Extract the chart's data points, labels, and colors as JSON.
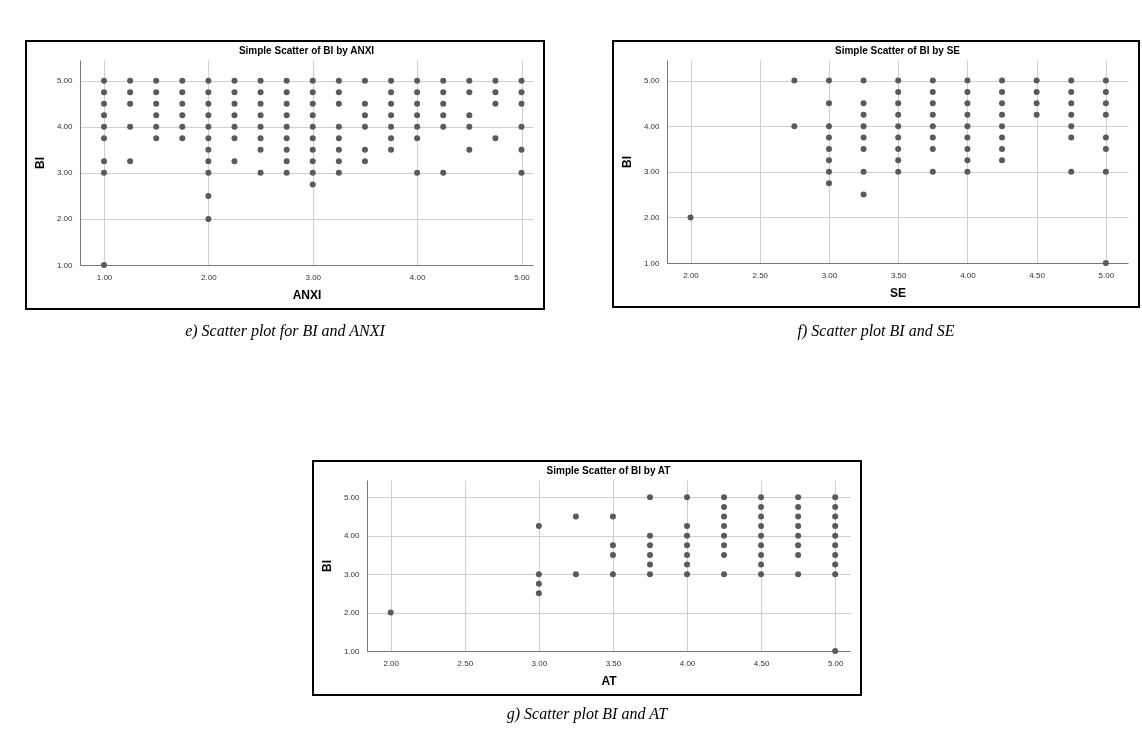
{
  "chart_data": [
    {
      "type": "scatter",
      "title": "Simple Scatter of BI by ANXI",
      "xlabel": "ANXI",
      "ylabel": "BI",
      "marker": "circle",
      "grid": true,
      "xlim": [
        0.77,
        5.11
      ],
      "ylim": [
        1,
        5.45
      ],
      "xticks": [
        {
          "value": 1,
          "label": "1.00"
        },
        {
          "value": 2,
          "label": "2.00"
        },
        {
          "value": 3,
          "label": "3.00"
        },
        {
          "value": 4,
          "label": "4.00"
        },
        {
          "value": 5,
          "label": "5.00"
        }
      ],
      "yticks": [
        {
          "value": 1,
          "label": "1.00"
        },
        {
          "value": 2,
          "label": "2.00"
        },
        {
          "value": 3,
          "label": "3.00"
        },
        {
          "value": 4,
          "label": "4.00"
        },
        {
          "value": 5,
          "label": "5.00"
        }
      ],
      "annotations": [
        "e) Scatter plot for BI and ANXI"
      ],
      "series": [
        {
          "color": "#5a5a5a",
          "x": [
            1,
            1,
            1,
            1,
            1,
            1,
            1,
            1,
            1,
            1.25,
            1.25,
            1.25,
            1.25,
            1.25,
            1.5,
            1.5,
            1.5,
            1.5,
            1.5,
            1.5,
            1.75,
            1.75,
            1.75,
            1.75,
            1.75,
            1.75,
            2,
            2,
            2,
            2,
            2,
            2,
            2,
            2,
            2,
            2,
            2,
            2.25,
            2.25,
            2.25,
            2.25,
            2.25,
            2.25,
            2.25,
            2.5,
            2.5,
            2.5,
            2.5,
            2.5,
            2.5,
            2.5,
            2.5,
            2.75,
            2.75,
            2.75,
            2.75,
            2.75,
            2.75,
            2.75,
            2.75,
            2.75,
            3,
            3,
            3,
            3,
            3,
            3,
            3,
            3,
            3,
            3,
            3.25,
            3.25,
            3.25,
            3.25,
            3.25,
            3.25,
            3.25,
            3.25,
            3.5,
            3.5,
            3.5,
            3.5,
            3.5,
            3.5,
            3.75,
            3.75,
            3.75,
            3.75,
            3.75,
            3.75,
            3.75,
            4,
            4,
            4,
            4,
            4,
            4,
            4,
            4.25,
            4.25,
            4.25,
            4.25,
            4.25,
            4.25,
            4.5,
            4.5,
            4.5,
            4.5,
            4.5,
            4.75,
            4.75,
            4.75,
            4.75,
            5,
            5,
            5,
            5,
            5,
            5
          ],
          "values": [
            5,
            4.75,
            4.5,
            4.25,
            4,
            3.75,
            3.25,
            3,
            1,
            5,
            4.75,
            4.5,
            4,
            3.25,
            5,
            4.75,
            4.5,
            4.25,
            4,
            3.75,
            5,
            4.75,
            4.5,
            4.25,
            4,
            3.75,
            5,
            4.75,
            4.5,
            4.25,
            4,
            3.75,
            3.5,
            3.25,
            3,
            2.5,
            2,
            5,
            4.75,
            4.5,
            4.25,
            4,
            3.75,
            3.25,
            5,
            4.75,
            4.5,
            4.25,
            4,
            3.75,
            3.5,
            3,
            5,
            4.75,
            4.5,
            4.25,
            4,
            3.75,
            3.5,
            3.25,
            3,
            5,
            4.75,
            4.5,
            4.25,
            4,
            3.75,
            3.5,
            3.25,
            3,
            2.75,
            5,
            4.75,
            4.5,
            4,
            3.75,
            3.5,
            3.25,
            3,
            5,
            4.5,
            4.25,
            4,
            3.5,
            3.25,
            5,
            4.75,
            4.5,
            4.25,
            4,
            3.75,
            3.5,
            5,
            4.75,
            4.5,
            4.25,
            4,
            3.75,
            3,
            5,
            4.75,
            4.5,
            4.25,
            4,
            3,
            5,
            4.75,
            4.25,
            4,
            3.5,
            5,
            4.75,
            4.5,
            3.75,
            5,
            4.75,
            4.5,
            4,
            3.5,
            3
          ]
        }
      ]
    },
    {
      "type": "scatter",
      "title": "Simple Scatter of BI by SE",
      "xlabel": "SE",
      "ylabel": "BI",
      "marker": "circle",
      "grid": true,
      "xlim": [
        1.83,
        5.16
      ],
      "ylim": [
        1,
        5.45
      ],
      "xticks": [
        {
          "value": 2,
          "label": "2.00"
        },
        {
          "value": 2.5,
          "label": "2.50"
        },
        {
          "value": 3,
          "label": "3.00"
        },
        {
          "value": 3.5,
          "label": "3.50"
        },
        {
          "value": 4,
          "label": "4.00"
        },
        {
          "value": 4.5,
          "label": "4.50"
        },
        {
          "value": 5,
          "label": "5.00"
        }
      ],
      "yticks": [
        {
          "value": 1,
          "label": "1.00"
        },
        {
          "value": 2,
          "label": "2.00"
        },
        {
          "value": 3,
          "label": "3.00"
        },
        {
          "value": 4,
          "label": "4.00"
        },
        {
          "value": 5,
          "label": "5.00"
        }
      ],
      "annotations": [
        "f) Scatter plot BI and SE"
      ],
      "series": [
        {
          "color": "#5a5a5a",
          "x": [
            2,
            2.75,
            2.75,
            3,
            3,
            3,
            3,
            3,
            3,
            3,
            3,
            3.25,
            3.25,
            3.25,
            3.25,
            3.25,
            3.25,
            3.25,
            3.25,
            3.5,
            3.5,
            3.5,
            3.5,
            3.5,
            3.5,
            3.5,
            3.5,
            3.5,
            3.75,
            3.75,
            3.75,
            3.75,
            3.75,
            3.75,
            3.75,
            3.75,
            4,
            4,
            4,
            4,
            4,
            4,
            4,
            4,
            4,
            4.25,
            4.25,
            4.25,
            4.25,
            4.25,
            4.25,
            4.25,
            4.25,
            4.5,
            4.5,
            4.5,
            4.5,
            4.75,
            4.75,
            4.75,
            4.75,
            4.75,
            4.75,
            4.75,
            5,
            5,
            5,
            5,
            5,
            5,
            5,
            5
          ],
          "values": [
            2,
            5,
            4,
            5,
            4.5,
            4,
            3.75,
            3.5,
            3.25,
            3,
            2.75,
            5,
            4.5,
            4.25,
            4,
            3.75,
            3.5,
            3,
            2.5,
            5,
            4.75,
            4.5,
            4.25,
            4,
            3.75,
            3.5,
            3.25,
            3,
            5,
            4.75,
            4.5,
            4.25,
            4,
            3.75,
            3.5,
            3,
            5,
            4.75,
            4.5,
            4.25,
            4,
            3.75,
            3.5,
            3.25,
            3,
            5,
            4.75,
            4.5,
            4.25,
            4,
            3.75,
            3.5,
            3.25,
            5,
            4.75,
            4.5,
            4.25,
            5,
            4.75,
            4.5,
            4.25,
            4,
            3.75,
            3,
            5,
            4.75,
            4.5,
            4.25,
            3.75,
            3.5,
            3,
            1
          ]
        }
      ]
    },
    {
      "type": "scatter",
      "title": "Simple Scatter of BI by AT",
      "xlabel": "AT",
      "ylabel": "BI",
      "marker": "circle",
      "grid": true,
      "xlim": [
        1.84,
        5.1
      ],
      "ylim": [
        1,
        5.45
      ],
      "xticks": [
        {
          "value": 2,
          "label": "2.00"
        },
        {
          "value": 2.5,
          "label": "2.50"
        },
        {
          "value": 3,
          "label": "3.00"
        },
        {
          "value": 3.5,
          "label": "3.50"
        },
        {
          "value": 4,
          "label": "4.00"
        },
        {
          "value": 4.5,
          "label": "4.50"
        },
        {
          "value": 5,
          "label": "5.00"
        }
      ],
      "yticks": [
        {
          "value": 1,
          "label": "1.00"
        },
        {
          "value": 2,
          "label": "2.00"
        },
        {
          "value": 3,
          "label": "3.00"
        },
        {
          "value": 4,
          "label": "4.00"
        },
        {
          "value": 5,
          "label": "5.00"
        }
      ],
      "annotations": [
        "g) Scatter plot BI and AT"
      ],
      "series": [
        {
          "color": "#5a5a5a",
          "x": [
            2,
            3,
            3,
            3,
            3,
            3.25,
            3.25,
            3.5,
            3.5,
            3.5,
            3.5,
            3.75,
            3.75,
            3.75,
            3.75,
            3.75,
            3.75,
            4,
            4,
            4,
            4,
            4,
            4,
            4,
            4.25,
            4.25,
            4.25,
            4.25,
            4.25,
            4.25,
            4.25,
            4.25,
            4.5,
            4.5,
            4.5,
            4.5,
            4.5,
            4.5,
            4.5,
            4.5,
            4.5,
            4.75,
            4.75,
            4.75,
            4.75,
            4.75,
            4.75,
            4.75,
            4.75,
            5,
            5,
            5,
            5,
            5,
            5,
            5,
            5,
            5,
            5
          ],
          "values": [
            2,
            4.25,
            3,
            2.75,
            2.5,
            4.5,
            3,
            4.5,
            3.75,
            3.5,
            3,
            5,
            4,
            3.75,
            3.5,
            3.25,
            3,
            5,
            4.25,
            4,
            3.75,
            3.5,
            3.25,
            3,
            5,
            4.75,
            4.5,
            4.25,
            4,
            3.75,
            3.5,
            3,
            5,
            4.75,
            4.5,
            4.25,
            4,
            3.75,
            3.5,
            3.25,
            3,
            5,
            4.75,
            4.5,
            4.25,
            4,
            3.75,
            3.5,
            3,
            5,
            4.75,
            4.5,
            4.25,
            4,
            3.75,
            3.5,
            3.25,
            3,
            1
          ]
        }
      ]
    }
  ]
}
